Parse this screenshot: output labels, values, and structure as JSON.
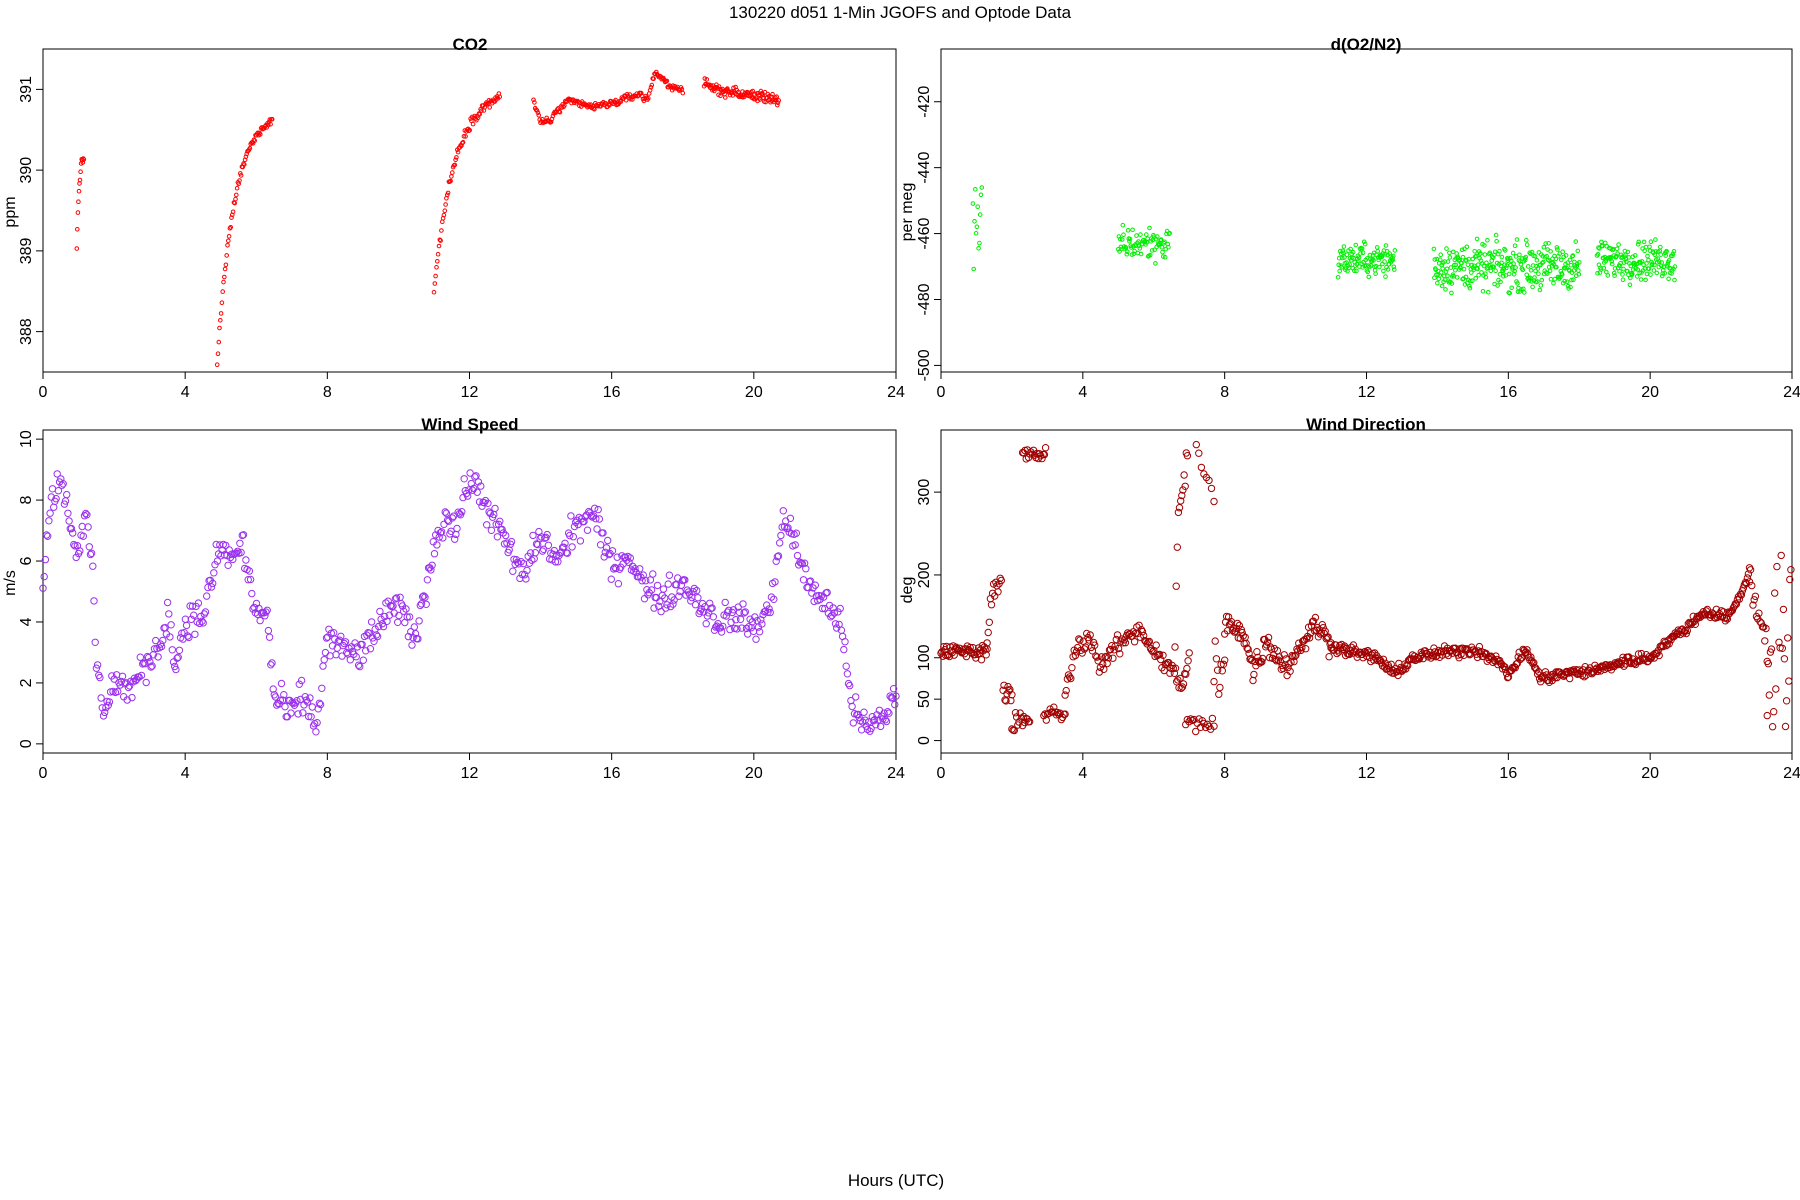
{
  "figure": {
    "title": "130220   d051   1-Min  JGOFS and Optode Data",
    "xlabel": "Hours (UTC)"
  },
  "chart_data": [
    {
      "id": "co2",
      "type": "scatter",
      "title": "CO2",
      "ylabel": "ppm",
      "xlim": [
        0,
        24
      ],
      "ylim": [
        387.5,
        391.5
      ],
      "xticks": [
        0,
        4,
        8,
        12,
        16,
        20,
        24
      ],
      "yticks": [
        388,
        389,
        390,
        391
      ],
      "color": "#ff0000",
      "marker_size": 1.8,
      "segments": [
        {
          "x0": 0.95,
          "x1": 1.15,
          "kind": "rise",
          "y0": 389.0,
          "y1": 390.15,
          "n": 14,
          "noise": 0.05
        },
        {
          "x0": 4.9,
          "x1": 6.45,
          "kind": "rise",
          "y0": 387.6,
          "y1": 390.62,
          "n": 70,
          "noise": 0.04
        },
        {
          "x0": 11.0,
          "x1": 12.85,
          "kind": "rise",
          "y0": 388.5,
          "y1": 390.9,
          "n": 80,
          "noise": 0.05
        },
        {
          "x0": 13.8,
          "x1": 18.0,
          "kind": "keys",
          "keys": [
            [
              13.8,
              390.85
            ],
            [
              14.0,
              390.6
            ],
            [
              14.3,
              390.62
            ],
            [
              14.5,
              390.75
            ],
            [
              14.8,
              390.85
            ],
            [
              15.5,
              390.78
            ],
            [
              16.2,
              390.85
            ],
            [
              16.5,
              390.9
            ],
            [
              16.8,
              390.95
            ],
            [
              17.0,
              390.85
            ],
            [
              17.2,
              391.2
            ],
            [
              17.4,
              391.15
            ],
            [
              17.6,
              391.05
            ],
            [
              18.0,
              391.0
            ]
          ],
          "n": 170,
          "noise": 0.04
        },
        {
          "x0": 18.6,
          "x1": 20.7,
          "kind": "keys",
          "keys": [
            [
              18.6,
              391.05
            ],
            [
              19.0,
              391.0
            ],
            [
              19.5,
              390.95
            ],
            [
              20.0,
              390.92
            ],
            [
              20.5,
              390.9
            ],
            [
              20.7,
              390.85
            ]
          ],
          "n": 110,
          "noise": 0.06
        }
      ]
    },
    {
      "id": "o2n2",
      "type": "scatter",
      "title": "d(O2/N2)",
      "ylabel": "per meg",
      "xlim": [
        0,
        24
      ],
      "ylim": [
        -502,
        -404
      ],
      "xticks": [
        0,
        4,
        8,
        12,
        16,
        20,
        24
      ],
      "yticks": [
        -420,
        -440,
        -460,
        -480,
        -500
      ],
      "color": "#00ee00",
      "marker_size": 1.8,
      "segments": [
        {
          "x0": 0.9,
          "x1": 1.15,
          "kind": "flat",
          "y": -462,
          "n": 12,
          "noise": 14
        },
        {
          "x0": 5.0,
          "x1": 6.45,
          "kind": "flat",
          "y": -463,
          "n": 80,
          "noise": 4.5
        },
        {
          "x0": 11.2,
          "x1": 12.8,
          "kind": "flat",
          "y": -468,
          "n": 110,
          "noise": 4.0
        },
        {
          "x0": 13.9,
          "x1": 18.0,
          "kind": "flat",
          "y": -470,
          "n": 300,
          "noise": 6.0
        },
        {
          "x0": 18.5,
          "x1": 20.7,
          "kind": "flat",
          "y": -468,
          "n": 160,
          "noise": 5.0
        }
      ]
    },
    {
      "id": "wspd",
      "type": "scatter",
      "title": "Wind Speed",
      "ylabel": "m/s",
      "xlim": [
        0,
        24
      ],
      "ylim": [
        -0.3,
        10.3
      ],
      "xticks": [
        0,
        4,
        8,
        12,
        16,
        20,
        24
      ],
      "yticks": [
        0,
        2,
        4,
        6,
        8,
        10
      ],
      "color": "#9a30ee",
      "marker_size": 3.2,
      "segments": [
        {
          "x0": 0.0,
          "x1": 24.0,
          "kind": "keys",
          "keys": [
            [
              0.0,
              5.2
            ],
            [
              0.2,
              7.8
            ],
            [
              0.5,
              8.8
            ],
            [
              0.8,
              7.2
            ],
            [
              1.0,
              6.0
            ],
            [
              1.2,
              7.5
            ],
            [
              1.4,
              5.8
            ],
            [
              1.5,
              2.5
            ],
            [
              1.7,
              1.2
            ],
            [
              2.0,
              2.0
            ],
            [
              2.5,
              1.8
            ],
            [
              3.0,
              2.8
            ],
            [
              3.3,
              3.2
            ],
            [
              3.5,
              4.5
            ],
            [
              3.7,
              2.5
            ],
            [
              4.0,
              4.0
            ],
            [
              4.5,
              4.2
            ],
            [
              5.0,
              6.5
            ],
            [
              5.3,
              6.0
            ],
            [
              5.6,
              6.6
            ],
            [
              6.0,
              4.2
            ],
            [
              6.3,
              4.4
            ],
            [
              6.5,
              1.5
            ],
            [
              7.0,
              1.0
            ],
            [
              7.3,
              1.6
            ],
            [
              7.7,
              0.6
            ],
            [
              8.0,
              3.5
            ],
            [
              8.5,
              3.0
            ],
            [
              9.0,
              3.0
            ],
            [
              9.5,
              4.0
            ],
            [
              10.0,
              4.5
            ],
            [
              10.5,
              3.5
            ],
            [
              11.0,
              6.5
            ],
            [
              11.3,
              7.5
            ],
            [
              11.6,
              7.0
            ],
            [
              12.0,
              8.7
            ],
            [
              12.5,
              7.8
            ],
            [
              13.0,
              6.6
            ],
            [
              13.5,
              5.5
            ],
            [
              14.0,
              6.8
            ],
            [
              14.5,
              6.0
            ],
            [
              15.0,
              7.2
            ],
            [
              15.5,
              7.5
            ],
            [
              16.0,
              5.8
            ],
            [
              16.5,
              6.2
            ],
            [
              17.0,
              5.0
            ],
            [
              17.5,
              4.8
            ],
            [
              18.0,
              5.3
            ],
            [
              18.5,
              4.6
            ],
            [
              19.0,
              4.0
            ],
            [
              19.5,
              4.2
            ],
            [
              20.0,
              3.8
            ],
            [
              20.5,
              4.5
            ],
            [
              20.8,
              7.5
            ],
            [
              21.2,
              6.5
            ],
            [
              21.5,
              5.2
            ],
            [
              22.0,
              4.7
            ],
            [
              22.5,
              3.7
            ],
            [
              22.8,
              1.0
            ],
            [
              23.2,
              0.5
            ],
            [
              23.6,
              0.8
            ],
            [
              24.0,
              1.6
            ]
          ],
          "n": 720,
          "noise": 0.45
        }
      ]
    },
    {
      "id": "wdir",
      "type": "scatter",
      "title": "Wind Direction",
      "ylabel": "deg",
      "xlim": [
        0,
        24
      ],
      "ylim": [
        -15,
        375
      ],
      "xticks": [
        0,
        4,
        8,
        12,
        16,
        20,
        24
      ],
      "yticks": [
        0,
        50,
        100,
        200,
        300
      ],
      "color": "#a00000",
      "marker_size": 3.2,
      "segments": [
        {
          "x0": 0.0,
          "x1": 1.3,
          "kind": "flat",
          "y": 108,
          "n": 50,
          "noise": 7
        },
        {
          "x0": 1.3,
          "x1": 1.7,
          "kind": "rise",
          "y0": 120,
          "y1": 195,
          "n": 14,
          "noise": 8
        },
        {
          "x0": 1.75,
          "x1": 2.0,
          "kind": "flat",
          "y": 60,
          "n": 10,
          "noise": 15
        },
        {
          "x0": 2.0,
          "x1": 2.5,
          "kind": "flat",
          "y": 22,
          "n": 16,
          "noise": 12
        },
        {
          "x0": 2.3,
          "x1": 2.95,
          "kind": "flat",
          "y": 345,
          "n": 20,
          "noise": 7
        },
        {
          "x0": 2.9,
          "x1": 3.5,
          "kind": "flat",
          "y": 32,
          "n": 18,
          "noise": 8
        },
        {
          "x0": 3.5,
          "x1": 7.0,
          "kind": "keys",
          "keys": [
            [
              3.5,
              55
            ],
            [
              3.8,
              110
            ],
            [
              4.2,
              125
            ],
            [
              4.5,
              90
            ],
            [
              5.0,
              115
            ],
            [
              5.6,
              135
            ],
            [
              6.0,
              110
            ],
            [
              6.5,
              85
            ],
            [
              6.8,
              65
            ],
            [
              7.0,
              100
            ]
          ],
          "n": 110,
          "noise": 10
        },
        {
          "x0": 6.6,
          "x1": 6.95,
          "kind": "rise",
          "y0": 120,
          "y1": 340,
          "n": 12,
          "noise": 25
        },
        {
          "x0": 6.9,
          "x1": 7.7,
          "kind": "flat",
          "y": 20,
          "n": 18,
          "noise": 9
        },
        {
          "x0": 7.2,
          "x1": 7.7,
          "kind": "fall",
          "y0": 350,
          "y1": 290,
          "n": 8,
          "noise": 12
        },
        {
          "x0": 7.7,
          "x1": 8.0,
          "kind": "flat",
          "y": 80,
          "n": 10,
          "noise": 35
        },
        {
          "x0": 8.0,
          "x1": 11.0,
          "kind": "keys",
          "keys": [
            [
              8.0,
              140
            ],
            [
              8.5,
              135
            ],
            [
              8.8,
              85
            ],
            [
              9.2,
              120
            ],
            [
              9.5,
              100
            ],
            [
              9.8,
              90
            ],
            [
              10.2,
              120
            ],
            [
              10.6,
              140
            ],
            [
              11.0,
              115
            ]
          ],
          "n": 110,
          "noise": 12
        },
        {
          "x0": 11.0,
          "x1": 20.0,
          "kind": "keys",
          "keys": [
            [
              11.0,
              115
            ],
            [
              11.8,
              105
            ],
            [
              12.3,
              100
            ],
            [
              12.8,
              80
            ],
            [
              13.3,
              100
            ],
            [
              14.0,
              105
            ],
            [
              15.0,
              110
            ],
            [
              15.6,
              100
            ],
            [
              16.0,
              80
            ],
            [
              16.5,
              110
            ],
            [
              16.9,
              75
            ],
            [
              17.5,
              80
            ],
            [
              18.5,
              85
            ],
            [
              19.2,
              95
            ],
            [
              20.0,
              100
            ]
          ],
          "n": 330,
          "noise": 6
        },
        {
          "x0": 20.0,
          "x1": 22.8,
          "kind": "keys",
          "keys": [
            [
              20.0,
              100
            ],
            [
              20.5,
              120
            ],
            [
              21.0,
              135
            ],
            [
              21.5,
              155
            ],
            [
              22.2,
              150
            ],
            [
              22.5,
              170
            ],
            [
              22.8,
              205
            ]
          ],
          "n": 100,
          "noise": 5
        },
        {
          "x0": 22.8,
          "x1": 23.3,
          "kind": "fall",
          "y0": 190,
          "y1": 120,
          "n": 16,
          "noise": 20
        },
        {
          "x0": 23.3,
          "x1": 24.0,
          "kind": "flat",
          "y": 100,
          "n": 24,
          "noise": 110
        }
      ]
    }
  ]
}
